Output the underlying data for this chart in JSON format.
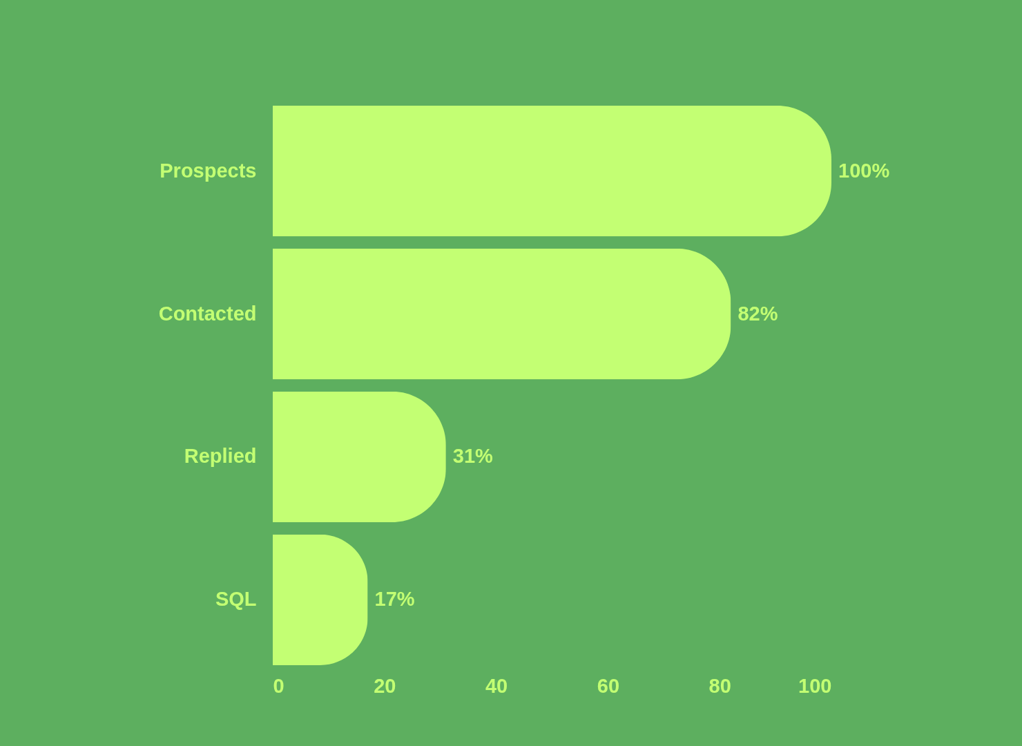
{
  "chart_data": {
    "type": "bar",
    "orientation": "horizontal",
    "categories": [
      "Prospects",
      "Contacted",
      "Replied",
      "SQL"
    ],
    "values": [
      100,
      82,
      31,
      17
    ],
    "value_labels": [
      "100%",
      "82%",
      "31%",
      "17%"
    ],
    "color": "#c3ff73",
    "xlim": [
      0,
      100
    ],
    "xticks": [
      0,
      20,
      40,
      60,
      80,
      100
    ]
  }
}
